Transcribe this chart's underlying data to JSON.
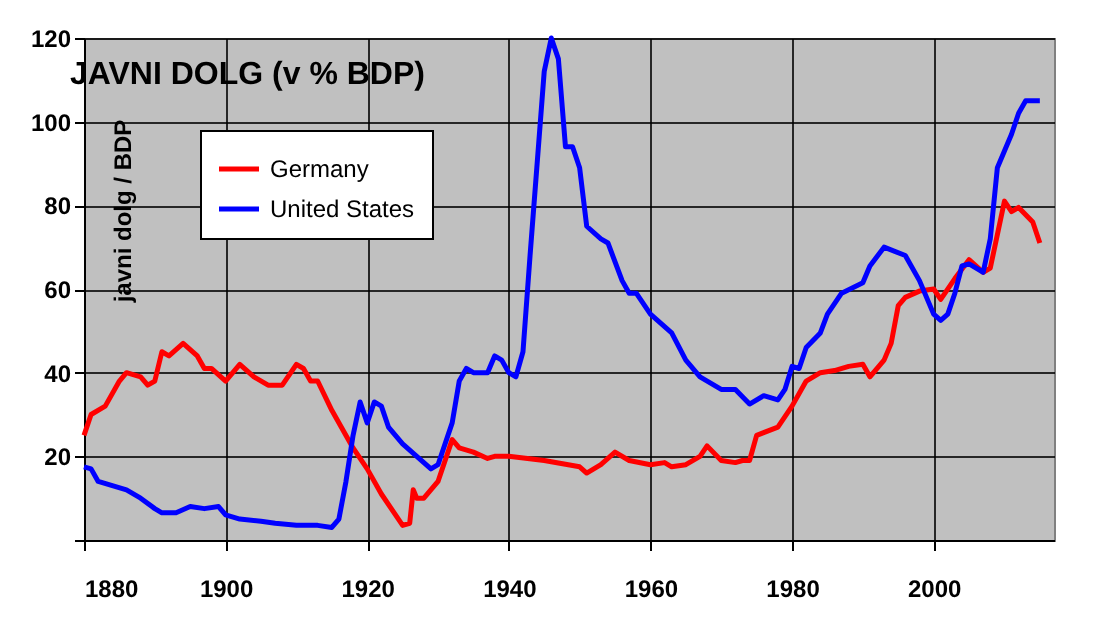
{
  "chart_data": {
    "type": "line",
    "title": "JAVNI DOLG (v % BDP)",
    "ylabel": "javni dolg / BDP",
    "xlim": [
      1880,
      2017
    ],
    "xticks": [
      1880,
      1900,
      1920,
      1940,
      1960,
      1980,
      2000
    ],
    "ylim": [
      0,
      120
    ],
    "yticks": [
      {
        "value": 0,
        "label": null
      },
      20,
      40,
      60,
      80,
      100,
      120
    ],
    "grid": true,
    "legend": "top left",
    "line_style": "solid",
    "series": [
      {
        "name": "Germany",
        "color": "#ff0000",
        "x": [
          1880,
          1881,
          1883,
          1885,
          1886,
          1888,
          1889,
          1890,
          1891,
          1892,
          1894,
          1896,
          1897,
          1898,
          1900,
          1902,
          1904,
          1906,
          1908,
          1910,
          1911,
          1912,
          1913,
          1915,
          1918,
          1920,
          1922,
          1924,
          1925,
          1926,
          1926.5,
          1927,
          1928,
          1930,
          1932,
          1933,
          1935,
          1937,
          1938,
          1940,
          1945,
          1950,
          1951,
          1953,
          1955,
          1957,
          1960,
          1962,
          1963,
          1965,
          1967,
          1968,
          1970,
          1972,
          1973,
          1974,
          1975,
          1978,
          1980,
          1982,
          1984,
          1986,
          1988,
          1990,
          1991,
          1993,
          1994,
          1995,
          1996,
          1998,
          2000,
          2001,
          2003,
          2005,
          2007,
          2008,
          2010,
          2011,
          2012,
          2014,
          2015
        ],
        "values": [
          25,
          30,
          32,
          38,
          40,
          39,
          37,
          38,
          45,
          44,
          47,
          44,
          41,
          41,
          38,
          42,
          39,
          37,
          37,
          42,
          41,
          38,
          38,
          31,
          22,
          17,
          11,
          6,
          3.5,
          4,
          12,
          10,
          10,
          14,
          24,
          22,
          21,
          19.5,
          20,
          20,
          19,
          17.5,
          16,
          18,
          21,
          19,
          18,
          18.5,
          17.5,
          18,
          20,
          22.5,
          19,
          18.5,
          19,
          19,
          25,
          27,
          32,
          38,
          40,
          40.5,
          41.5,
          42,
          39,
          43,
          47,
          56,
          58,
          59.5,
          60,
          57.5,
          62.5,
          67,
          64,
          65,
          81,
          78.5,
          79.5,
          76,
          71
        ]
      },
      {
        "name": "United States",
        "color": "#0000ff",
        "x": [
          1880,
          1881,
          1882,
          1884,
          1886,
          1888,
          1890,
          1891,
          1893,
          1895,
          1897,
          1899,
          1900,
          1902,
          1905,
          1907,
          1910,
          1913,
          1915,
          1916,
          1917,
          1918,
          1919,
          1920,
          1921,
          1922,
          1923,
          1925,
          1927,
          1929,
          1930,
          1932,
          1933,
          1934,
          1935,
          1936,
          1937,
          1938,
          1939,
          1940,
          1941,
          1942,
          1943,
          1944,
          1945,
          1946,
          1947,
          1948,
          1949,
          1950,
          1951,
          1953,
          1954,
          1956,
          1957,
          1958,
          1960,
          1963,
          1965,
          1967,
          1970,
          1972,
          1974,
          1976,
          1978,
          1979,
          1980,
          1981,
          1982,
          1984,
          1985,
          1987,
          1990,
          1991,
          1993,
          1996,
          1998,
          2000,
          2001,
          2002,
          2003,
          2004,
          2005,
          2007,
          2008,
          2009,
          2010,
          2011,
          2012,
          2013,
          2014,
          2015
        ],
        "values": [
          17.5,
          17,
          14,
          13,
          12,
          10,
          7.5,
          6.5,
          6.5,
          8,
          7.5,
          8,
          6,
          5,
          4.5,
          4,
          3.5,
          3.5,
          3,
          5,
          14,
          25,
          33,
          28,
          33,
          32,
          27,
          23,
          20,
          17,
          18,
          28,
          38,
          41,
          40,
          40,
          40,
          44,
          43,
          40,
          39,
          45,
          68,
          90,
          112,
          120,
          115,
          94,
          94,
          89,
          75,
          72,
          71,
          62,
          59,
          59,
          54,
          49.5,
          43,
          39,
          36,
          36,
          32.5,
          34.5,
          33.5,
          36,
          41.5,
          41,
          46,
          49.5,
          54,
          59,
          61.5,
          65.5,
          70,
          68,
          62,
          54,
          52.5,
          54,
          59,
          65.5,
          66,
          64,
          72,
          89,
          93,
          97,
          102,
          105,
          105,
          105
        ]
      }
    ]
  }
}
